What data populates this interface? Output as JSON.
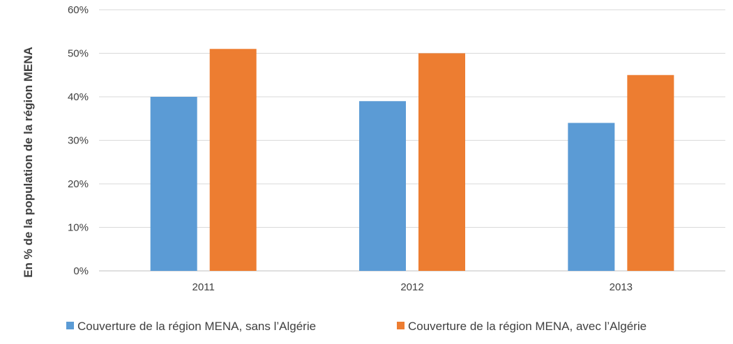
{
  "chart_data": {
    "type": "bar",
    "categories": [
      "2011",
      "2012",
      "2013"
    ],
    "series": [
      {
        "name": "Couverture de la région MENA, sans l’Algérie",
        "values": [
          40,
          39,
          34
        ],
        "color": "#5B9BD5"
      },
      {
        "name": "Couverture de la région MENA, avec l’Algérie",
        "values": [
          51,
          50,
          45
        ],
        "color": "#ED7D31"
      }
    ],
    "title": "",
    "xlabel": "",
    "ylabel": "En % de la population de la région MENA",
    "ylim": [
      0,
      60
    ],
    "yticks": [
      "0%",
      "10%",
      "20%",
      "30%",
      "40%",
      "50%",
      "60%"
    ],
    "grid": true,
    "legend_position": "bottom"
  }
}
